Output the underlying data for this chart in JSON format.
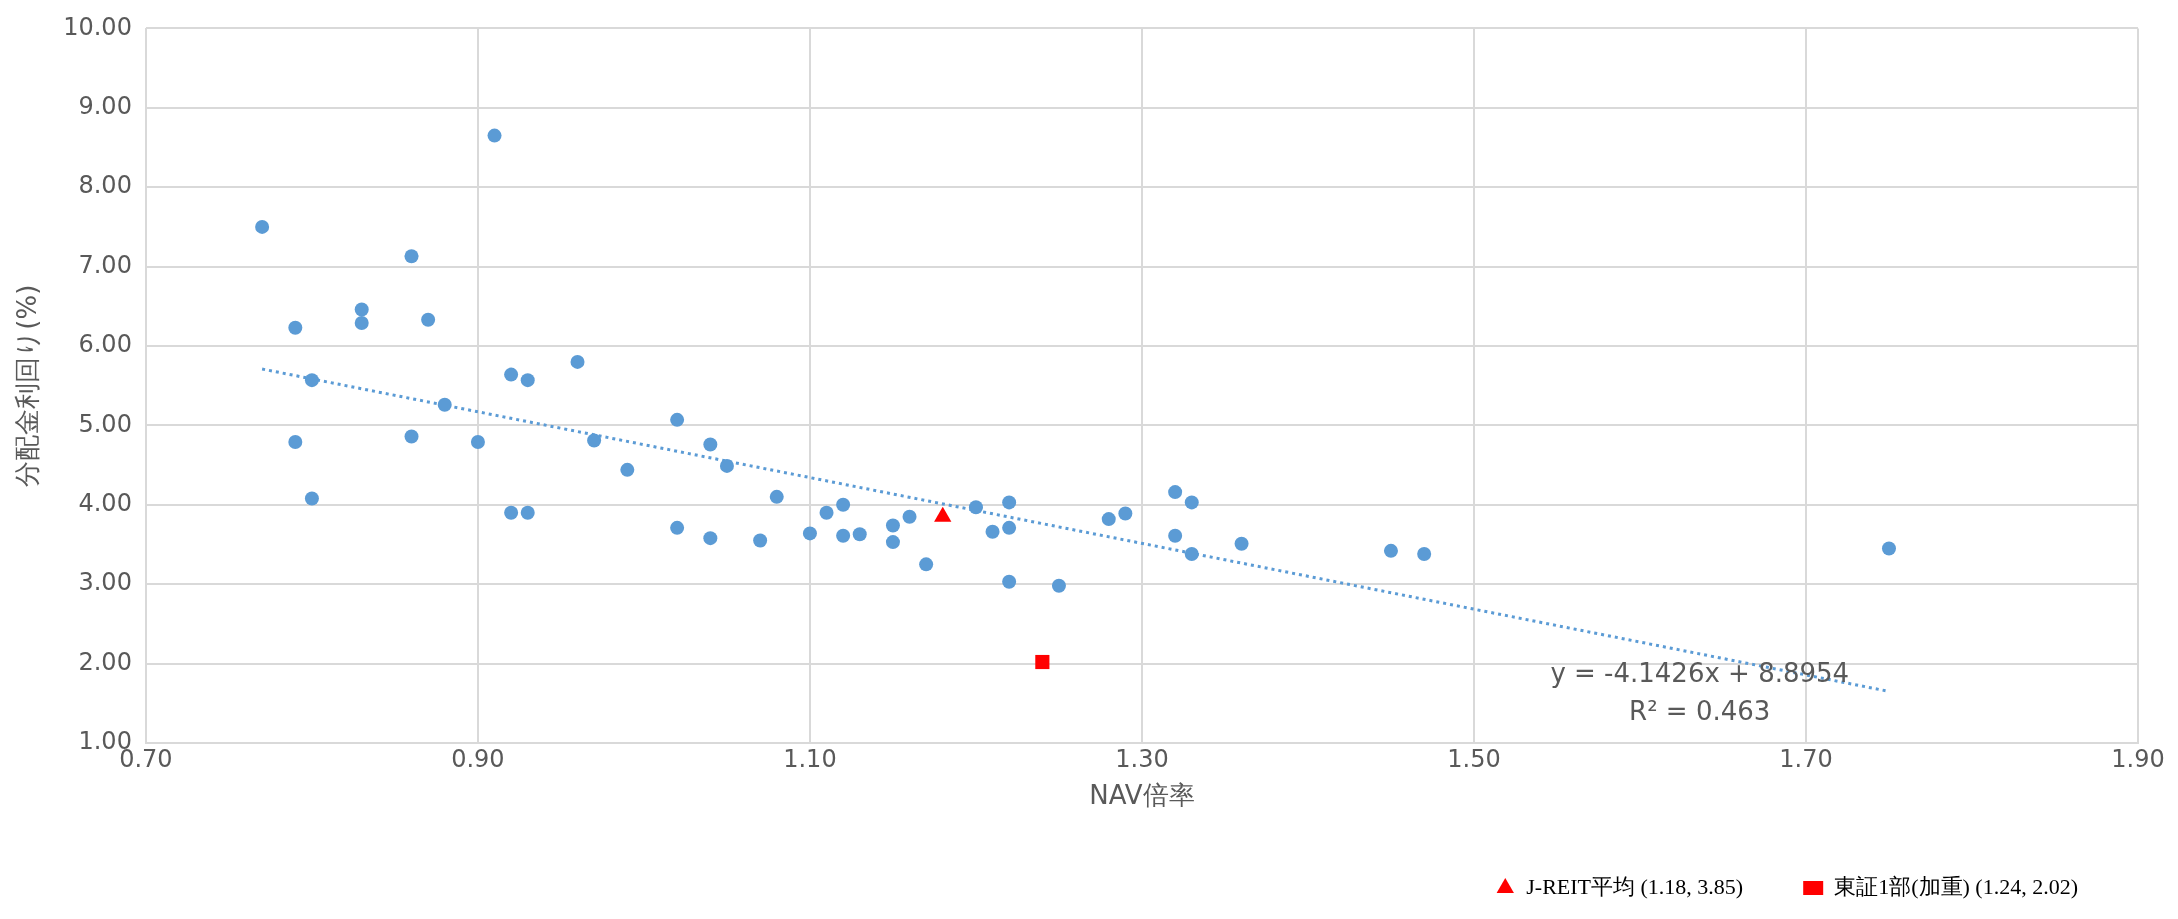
{
  "chart_data": {
    "type": "scatter",
    "xlabel": "NAV倍率",
    "ylabel": "分配金利回り(%)",
    "xlim": [
      0.7,
      1.9
    ],
    "xticks": [
      {
        "value": 0.7,
        "label": "0.70"
      },
      {
        "value": 0.9,
        "label": "0.90"
      },
      {
        "value": 1.1,
        "label": "1.10"
      },
      {
        "value": 1.3,
        "label": "1.30"
      },
      {
        "value": 1.5,
        "label": "1.50"
      },
      {
        "value": 1.7,
        "label": "1.70"
      },
      {
        "value": 1.9,
        "label": "1.90"
      }
    ],
    "ylim": [
      1,
      10
    ],
    "yticks": [
      {
        "value": 1,
        "label": "1.00"
      },
      {
        "value": 2,
        "label": "2.00"
      },
      {
        "value": 3,
        "label": "3.00"
      },
      {
        "value": 4,
        "label": "4.00"
      },
      {
        "value": 5,
        "label": "5.00"
      },
      {
        "value": 6,
        "label": "6.00"
      },
      {
        "value": 7,
        "label": "7.00"
      },
      {
        "value": 8,
        "label": "8.00"
      },
      {
        "value": 9,
        "label": "9.00"
      },
      {
        "value": 10,
        "label": "10.00"
      }
    ],
    "grid": true,
    "legend": "bottom right",
    "series": [
      {
        "color": "#5b9bd5",
        "marker": "circle",
        "x": [
          0.77,
          0.79,
          0.79,
          0.8,
          0.8,
          0.83,
          0.83,
          0.86,
          0.86,
          0.87,
          0.88,
          0.9,
          0.91,
          0.92,
          0.92,
          0.93,
          0.93,
          0.96,
          0.97,
          0.99,
          1.02,
          1.02,
          1.04,
          1.04,
          1.05,
          1.07,
          1.08,
          1.1,
          1.11,
          1.12,
          1.12,
          1.13,
          1.15,
          1.15,
          1.16,
          1.17,
          1.2,
          1.21,
          1.22,
          1.22,
          1.22,
          1.25,
          1.28,
          1.29,
          1.32,
          1.32,
          1.33,
          1.33,
          1.36,
          1.45,
          1.47,
          1.75
        ],
        "values": [
          7.5,
          6.23,
          4.79,
          5.57,
          4.08,
          6.46,
          6.29,
          7.13,
          4.86,
          6.33,
          5.26,
          4.79,
          8.65,
          5.64,
          3.9,
          5.57,
          3.9,
          5.8,
          4.81,
          4.44,
          5.07,
          3.71,
          4.76,
          3.58,
          4.49,
          3.55,
          4.1,
          3.64,
          3.9,
          4.0,
          3.61,
          3.63,
          3.74,
          3.53,
          3.85,
          3.25,
          3.97,
          3.66,
          4.03,
          3.71,
          3.03,
          2.98,
          3.82,
          3.89,
          4.16,
          3.61,
          4.03,
          3.38,
          3.51,
          3.42,
          3.38,
          3.45
        ]
      },
      {
        "type": "line",
        "color": "#5b9bd5",
        "marker": "none",
        "line_style": "dotted",
        "x": [
          0.77,
          1.75
        ],
        "values": [
          5.71,
          1.65
        ]
      },
      {
        "name": "J-REIT平均 (1.18, 3.85)",
        "color": "#ff0000",
        "marker": "triangle",
        "x": [
          1.18
        ],
        "values": [
          3.85
        ]
      },
      {
        "name": "東証1部(加重) (1.24, 2.02)",
        "color": "#ff0000",
        "marker": "square",
        "x": [
          1.24
        ],
        "values": [
          2.02
        ]
      }
    ],
    "annotations": [
      "y = -4.1426x + 8.8954",
      "R² = 0.463"
    ]
  }
}
